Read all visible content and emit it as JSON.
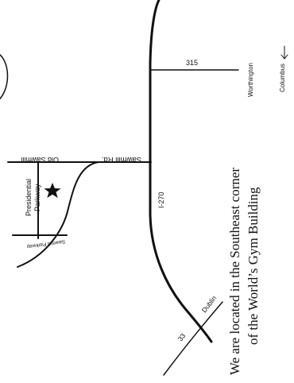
{
  "map": {
    "caption": {
      "line1": "We are located in the Southeast corner",
      "line2": "of the World’s Gym Building"
    },
    "labels": {
      "old_sawmill": "Old Sawmill",
      "sawmill_rd": "Sawmill Rd.",
      "presidential_line1": "Presidential",
      "presidential_line2": "Parkway",
      "sawmill_parkway": "Sawmill Parkway",
      "i270": "I-270",
      "route315": "315",
      "worthington": "Worthington",
      "columbus": "Columbus",
      "dublin": "Dublin",
      "route33": "33"
    },
    "icons": {
      "location_marker": "star-icon",
      "direction_arrow": "arrow-down-icon"
    }
  }
}
